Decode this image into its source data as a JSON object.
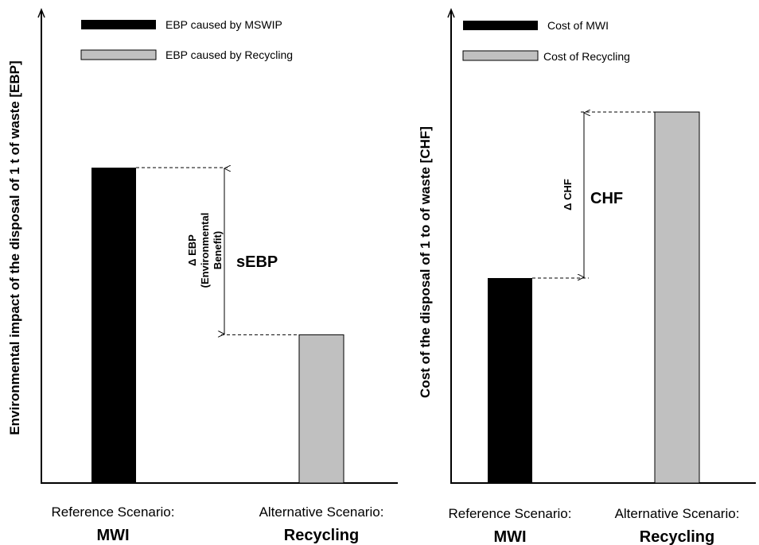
{
  "chart_data": [
    {
      "type": "bar",
      "ylabel": "Environmental impact of the disposal of 1 t of waste [EBP]",
      "categories": [
        {
          "top": "Reference Scenario:",
          "bottom": "MWI"
        },
        {
          "top": "Alternative Scenario:",
          "bottom": "Recycling"
        }
      ],
      "series": [
        {
          "name": "EBP caused by MSWIP",
          "values": [
            100,
            null
          ]
        },
        {
          "name": "EBP caused by Recycling",
          "values": [
            null,
            47
          ]
        }
      ],
      "ylim": [
        0,
        100
      ],
      "legend": "top-left",
      "annotation": {
        "delta_label": [
          "Δ EBP",
          "(Environmental",
          "Benefit)"
        ],
        "main_label": "sEBP"
      },
      "colors": {
        "series1": "#000000",
        "series2": "#c0c0c0"
      }
    },
    {
      "type": "bar",
      "ylabel": "Cost of the disposal of 1 to of waste [CHF]",
      "categories": [
        {
          "top": "Reference Scenario:",
          "bottom": "MWI"
        },
        {
          "top": "Alternative Scenario:",
          "bottom": "Recycling"
        }
      ],
      "series": [
        {
          "name": "Cost of MWI",
          "values": [
            100,
            null
          ]
        },
        {
          "name": "Cost of Recycling",
          "values": [
            null,
            181
          ]
        }
      ],
      "ylim": [
        0,
        181
      ],
      "legend": "top-left",
      "annotation": {
        "delta_label": [
          "Δ CHF"
        ],
        "main_label": "CHF"
      },
      "colors": {
        "series1": "#000000",
        "series2": "#c0c0c0"
      }
    }
  ]
}
